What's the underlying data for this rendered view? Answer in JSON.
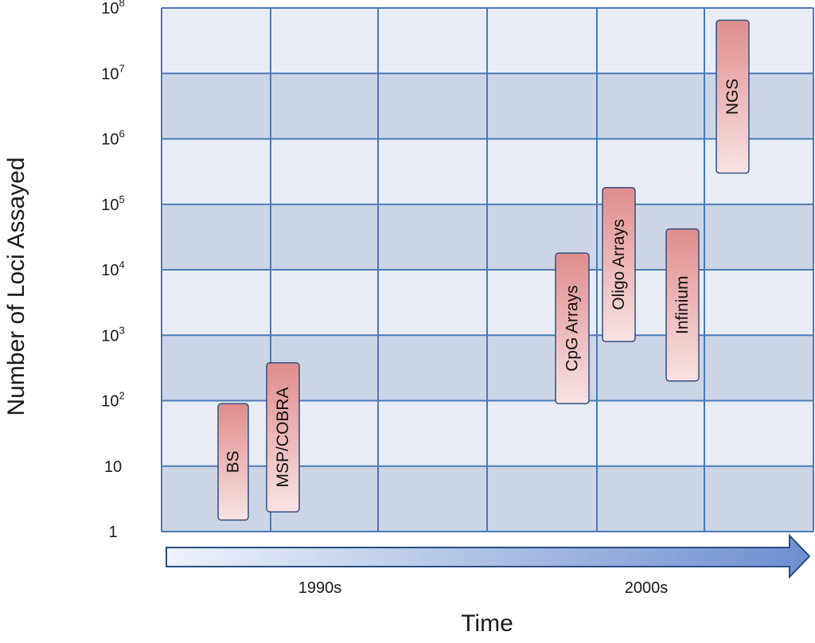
{
  "chart_data": {
    "type": "bar",
    "title": "",
    "xlabel": "Time",
    "ylabel": "Number of Loci Assayed",
    "y_scale": "log",
    "ylim": [
      1,
      100000000
    ],
    "y_ticks": [
      {
        "value": 1,
        "base": "1",
        "exp": ""
      },
      {
        "value": 10,
        "base": "10",
        "exp": ""
      },
      {
        "value": 100,
        "base": "10",
        "exp": "2"
      },
      {
        "value": 1000,
        "base": "10",
        "exp": "3"
      },
      {
        "value": 10000,
        "base": "10",
        "exp": "4"
      },
      {
        "value": 100000,
        "base": "10",
        "exp": "5"
      },
      {
        "value": 1000000,
        "base": "10",
        "exp": "6"
      },
      {
        "value": 10000000,
        "base": "10",
        "exp": "7"
      },
      {
        "value": 100000000,
        "base": "10",
        "exp": "8"
      }
    ],
    "x_periods": [
      "1990s",
      "2000s"
    ],
    "grid": true,
    "ranges": [
      {
        "label": "BS",
        "low": 1.5,
        "high": 90
      },
      {
        "label": "MSP/COBRA",
        "low": 2,
        "high": 380
      },
      {
        "label": "CpG Arrays",
        "low": 90,
        "high": 18000
      },
      {
        "label": "Oligo Arrays",
        "low": 800,
        "high": 180000
      },
      {
        "label": "Infinium",
        "low": 200,
        "high": 42000
      },
      {
        "label": "NGS",
        "low": 300000,
        "high": 65000000
      }
    ],
    "colors": {
      "bar_top": "#e08c8c",
      "bar_bottom": "#f8e3e3",
      "grid": "#4a7ab8",
      "band_light": "#e8edf5",
      "band_dark": "#ccd5e6",
      "arrow": "#6c8fcf"
    }
  }
}
